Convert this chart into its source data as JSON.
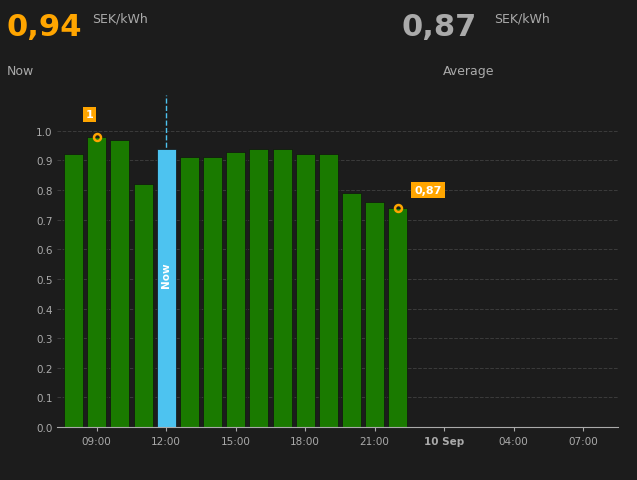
{
  "bg_color": "#1c1c1c",
  "bar_color": "#1a7a00",
  "bar_color_now": "#4dc3f0",
  "bar_edge_color": "#111111",
  "now_value": "0,94",
  "now_unit": "SEK/kWh",
  "now_sublabel": "Now",
  "avg_value": "0,87",
  "avg_unit": "SEK/kWh",
  "avg_sublabel": "Average",
  "bar_heights": [
    0.92,
    0.98,
    0.97,
    0.82,
    0.94,
    0.91,
    0.91,
    0.93,
    0.94,
    0.94,
    0.92,
    0.92,
    0.79,
    0.76,
    0.74
  ],
  "bar_hours": [
    8,
    9,
    10,
    11,
    12,
    13,
    14,
    15,
    16,
    17,
    18,
    19,
    20,
    21,
    22
  ],
  "now_bar_index": 4,
  "peak_bar_index": 1,
  "last_bar_index": 14,
  "xtick_hours": [
    9,
    12,
    15,
    18,
    21,
    24,
    27,
    30
  ],
  "xtick_labels": [
    "09:00",
    "12:00",
    "15:00",
    "18:00",
    "21:00",
    "10 Sep",
    "04:00",
    "07:00"
  ],
  "ylim": [
    0.0,
    1.12
  ],
  "yticks": [
    0.0,
    0.1,
    0.2,
    0.3,
    0.4,
    0.5,
    0.6,
    0.7,
    0.8,
    0.9,
    1.0
  ],
  "grid_color": "#444444",
  "orange_color": "#FFA500",
  "gray_color": "#aaaaaa",
  "white_color": "#ffffff",
  "bar_width": 0.82,
  "xlim": [
    7.3,
    31.5
  ]
}
